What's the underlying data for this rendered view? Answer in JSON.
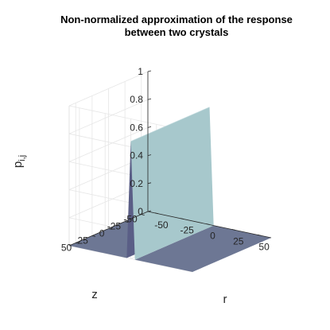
{
  "chart_data": {
    "type": "surface",
    "title_line1": "Non-normalized approximation of the response",
    "title_line2": "between two crystals",
    "ylabel_main": "p",
    "ylabel_sub": "i,j",
    "xlabel": "r",
    "zlabel": "z",
    "value_axis": {
      "range": [
        0,
        1
      ],
      "ticks": [
        "0",
        "0.2",
        "0.4",
        "0.6",
        "0.8",
        "1"
      ]
    },
    "r_axis": {
      "range": [
        -60,
        60
      ],
      "ticks": [
        "-50",
        "-25",
        "0",
        "25",
        "50"
      ]
    },
    "z_axis": {
      "range": [
        -60,
        60
      ],
      "ticks": [
        "-50",
        "-25",
        "0",
        "25",
        "50"
      ]
    },
    "grid": true,
    "ridge": {
      "description_of_shape": "triangular ridge along z at r = 0",
      "r_values": [
        -4,
        0,
        4
      ],
      "p_values": [
        0,
        0.84,
        0
      ],
      "z_extent": [
        -60,
        60
      ],
      "baseline": 0
    },
    "colors": {
      "floor": "#6d7794",
      "ridge_light_face": "#a7c8cc",
      "ridge_dark_face": "#5a5e86",
      "grid": "#e6e6e6",
      "axis": "#262626"
    }
  }
}
